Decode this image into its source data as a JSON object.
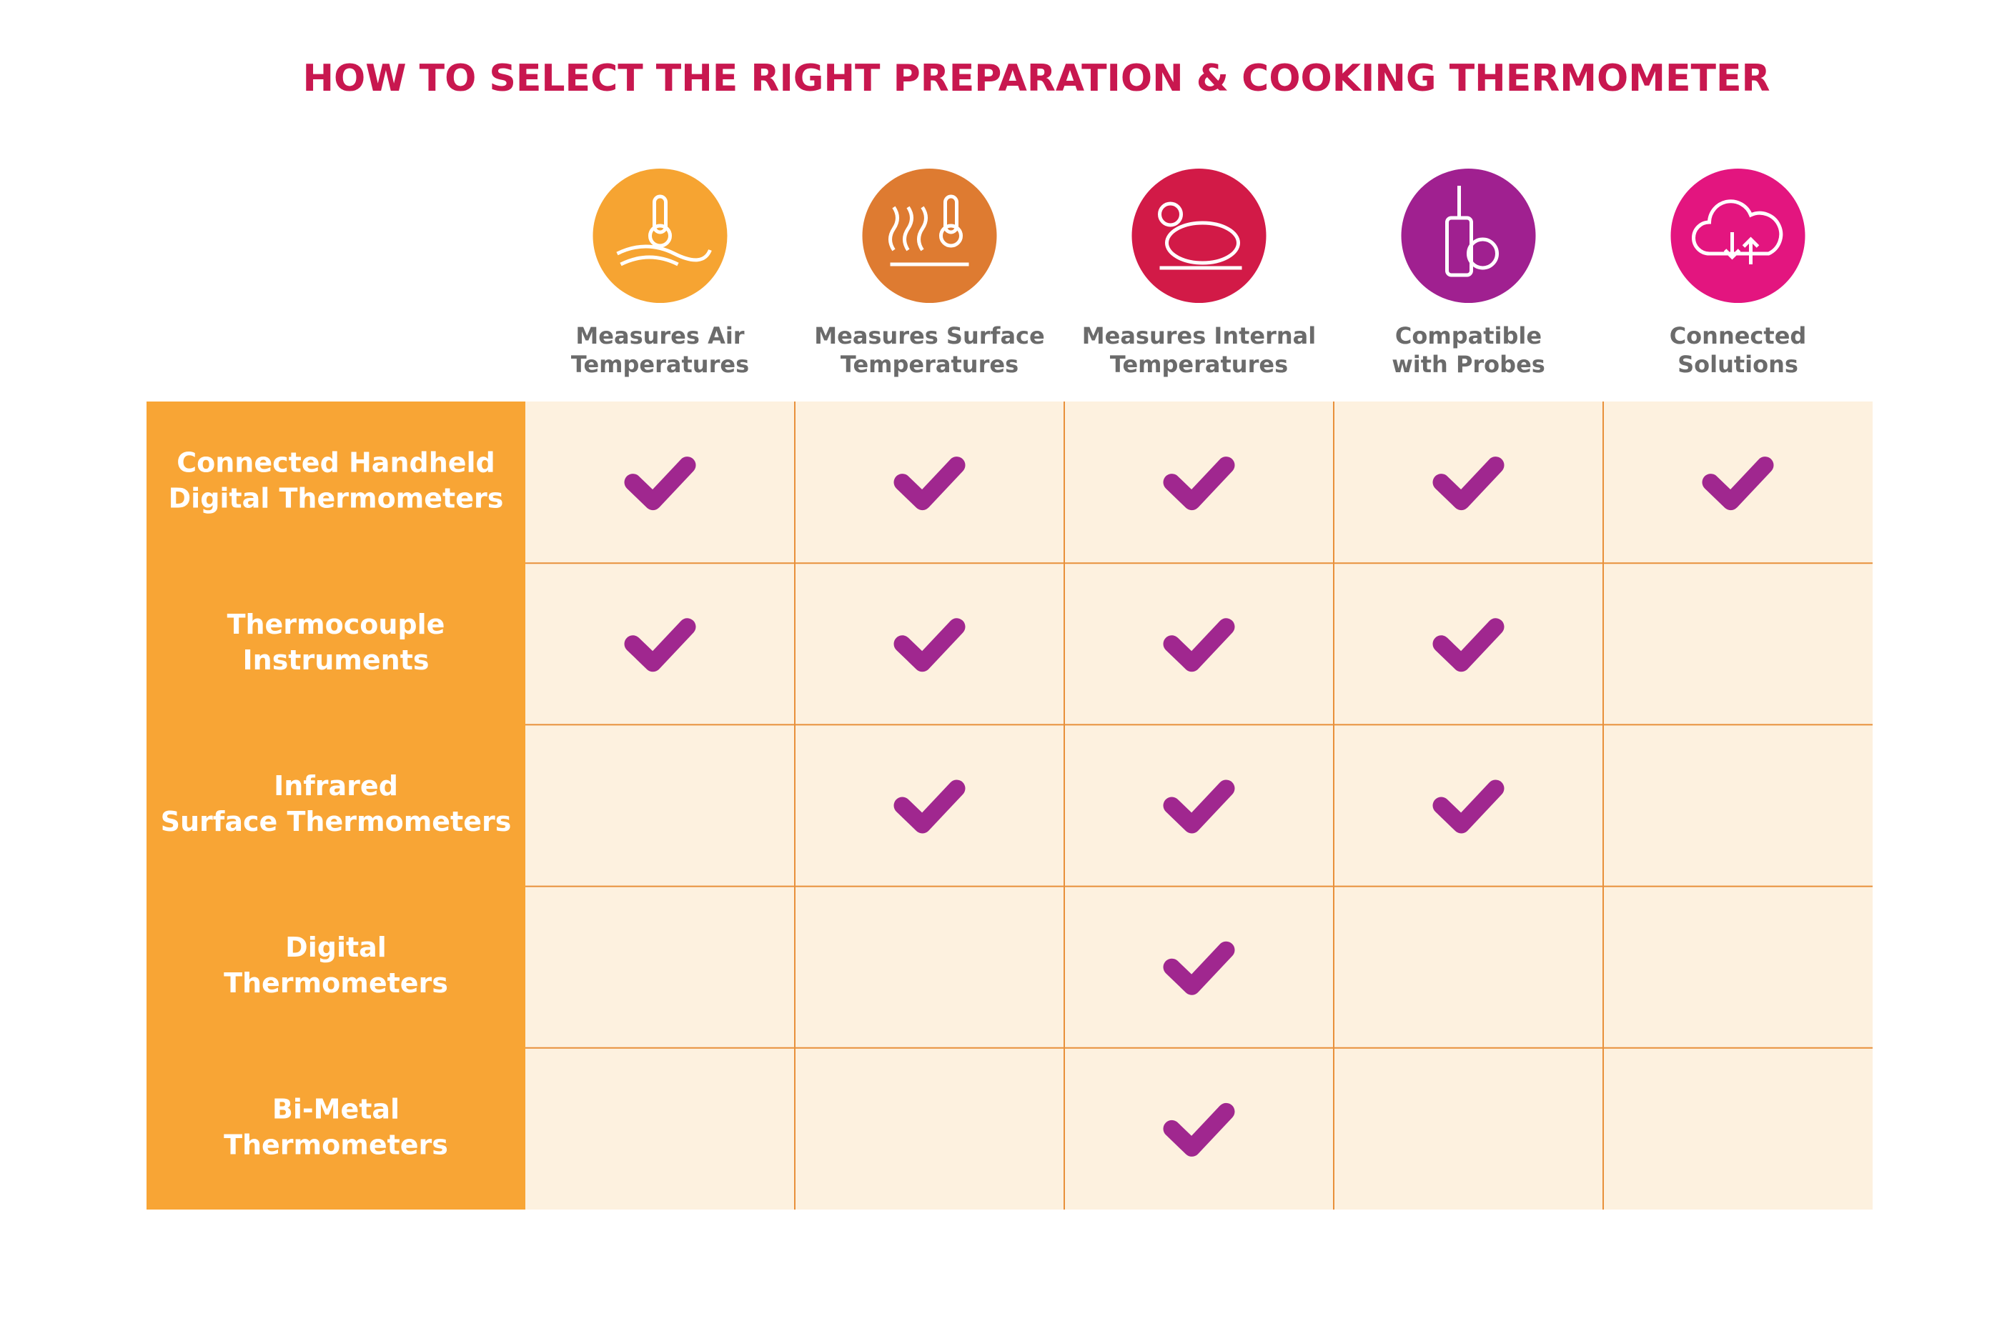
{
  "title": "HOW TO SELECT THE RIGHT PREPARATION & COOKING THERMOMETER",
  "columns": [
    {
      "label": [
        "Measures Air",
        "Temperatures"
      ],
      "color": "#f6a432"
    },
    {
      "label": [
        "Measures Surface",
        "Temperatures"
      ],
      "color": "#de7b31"
    },
    {
      "label": [
        "Measures Internal",
        "Temperatures"
      ],
      "color": "#d21a47"
    },
    {
      "label": [
        "Compatible",
        "with Probes"
      ],
      "color": "#a02090"
    },
    {
      "label": [
        "Connected",
        "Solutions"
      ],
      "color": "#e3157f"
    }
  ],
  "rows": [
    {
      "label": [
        "Connected Handheld",
        "Digital Thermometers"
      ],
      "checks": [
        true,
        true,
        true,
        true,
        true
      ]
    },
    {
      "label": [
        "Thermocouple",
        "Instruments"
      ],
      "checks": [
        true,
        true,
        true,
        true,
        false
      ]
    },
    {
      "label": [
        "Infrared",
        "Surface Thermometers"
      ],
      "checks": [
        false,
        true,
        true,
        true,
        false
      ]
    },
    {
      "label": [
        "Digital",
        "Thermometers"
      ],
      "checks": [
        false,
        false,
        true,
        false,
        false
      ]
    },
    {
      "label": [
        "Bi-Metal",
        "Thermometers"
      ],
      "checks": [
        false,
        false,
        true,
        false,
        false
      ]
    }
  ]
}
